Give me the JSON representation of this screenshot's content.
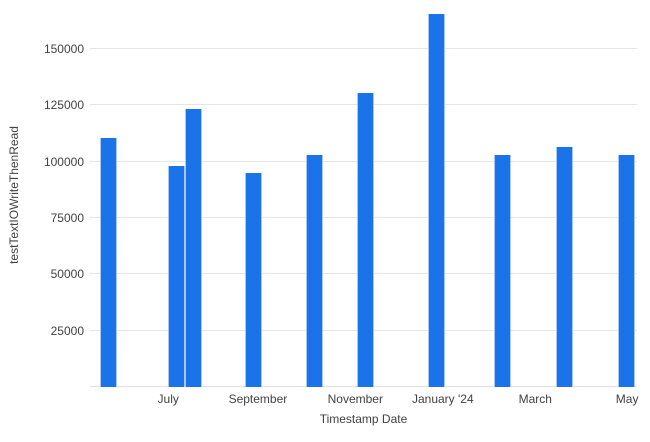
{
  "chart_data": {
    "type": "bar",
    "title": "",
    "xlabel": "Timestamp Date",
    "ylabel": "testTextIOWriteThenRead",
    "ylim": [
      0,
      170000
    ],
    "grid": true,
    "legend": false,
    "y_ticks": [
      25000,
      50000,
      75000,
      100000,
      125000,
      150000
    ],
    "x_ticks": [
      {
        "label": "July",
        "x_pct": 14.3
      },
      {
        "label": "September",
        "x_pct": 30.7
      },
      {
        "label": "November",
        "x_pct": 48.5
      },
      {
        "label": "January '24",
        "x_pct": 64.5
      },
      {
        "label": "March",
        "x_pct": 81.4
      },
      {
        "label": "May",
        "x_pct": 98.2
      }
    ],
    "bars": [
      {
        "x_pct": 3.3,
        "value": 110500
      },
      {
        "x_pct": 15.8,
        "value": 98300
      },
      {
        "x_pct": 19.0,
        "value": 123400
      },
      {
        "x_pct": 29.9,
        "value": 94800
      },
      {
        "x_pct": 41.0,
        "value": 103100
      },
      {
        "x_pct": 50.3,
        "value": 130300
      },
      {
        "x_pct": 63.4,
        "value": 165700
      },
      {
        "x_pct": 75.5,
        "value": 103000
      },
      {
        "x_pct": 86.8,
        "value": 106700
      },
      {
        "x_pct": 98.1,
        "value": 103100
      }
    ],
    "colors": {
      "bar": "#1a73e8",
      "bar_edge": "#aac8f6",
      "gridline": "#e6e6e6",
      "axis_line": "#e0e0e0",
      "label": "#424242"
    }
  }
}
